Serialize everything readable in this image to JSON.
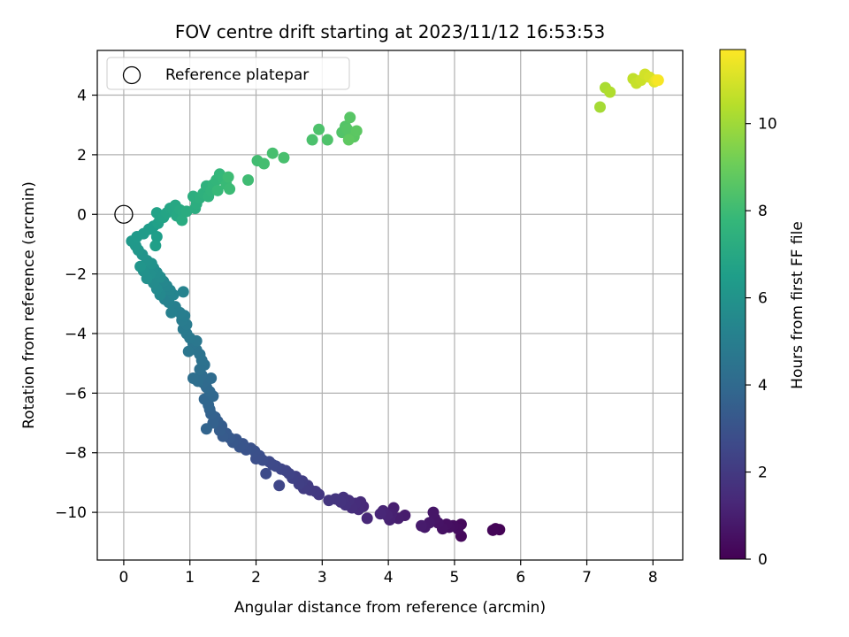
{
  "chart_data": {
    "type": "scatter",
    "title": "FOV centre drift starting at 2023/11/12 16:53:53",
    "xlabel": "Angular distance from reference (arcmin)",
    "ylabel": "Rotation from reference (arcmin)",
    "xlim": [
      -0.4,
      8.45
    ],
    "ylim": [
      -11.6,
      5.5
    ],
    "xticks": [
      0,
      1,
      2,
      3,
      4,
      5,
      6,
      7,
      8
    ],
    "yticks": [
      -10,
      -8,
      -6,
      -4,
      -2,
      0,
      2,
      4
    ],
    "xtick_labels": [
      "0",
      "1",
      "2",
      "3",
      "4",
      "5",
      "6",
      "7",
      "8"
    ],
    "ytick_labels": [
      "−10",
      "−8",
      "−6",
      "−4",
      "−2",
      "0",
      "2",
      "4"
    ],
    "grid": true,
    "legend": {
      "placement": "top-left",
      "entries": [
        {
          "label": "Reference platepar",
          "marker": "open-circle"
        }
      ]
    },
    "reference_point": {
      "x": 0,
      "y": 0
    },
    "colorbar": {
      "label": "Hours from first FF file",
      "range": [
        0,
        11.7
      ],
      "ticks": [
        0,
        2,
        4,
        6,
        8,
        10
      ],
      "tick_labels": [
        "0",
        "2",
        "4",
        "6",
        "8",
        "10"
      ],
      "colormap": "viridis",
      "stops": [
        "#440154",
        "#482878",
        "#3e4989",
        "#31688e",
        "#26828e",
        "#1f9e89",
        "#35b779",
        "#6ece58",
        "#b5de2b",
        "#fde725"
      ]
    },
    "points": [
      [
        5.68,
        -10.58,
        0.05
      ],
      [
        5.62,
        -10.55,
        0.1
      ],
      [
        5.58,
        -10.6,
        0.15
      ],
      [
        5.1,
        -10.8,
        0.25
      ],
      [
        5.1,
        -10.4,
        0.3
      ],
      [
        5.05,
        -10.55,
        0.35
      ],
      [
        4.98,
        -10.45,
        0.4
      ],
      [
        4.92,
        -10.5,
        0.45
      ],
      [
        4.88,
        -10.4,
        0.5
      ],
      [
        4.82,
        -10.55,
        0.55
      ],
      [
        4.75,
        -10.35,
        0.6
      ],
      [
        4.7,
        -10.2,
        0.65
      ],
      [
        4.68,
        -10.0,
        0.7
      ],
      [
        4.62,
        -10.35,
        0.75
      ],
      [
        4.55,
        -10.5,
        0.8
      ],
      [
        4.5,
        -10.45,
        0.85
      ],
      [
        4.25,
        -10.1,
        0.9
      ],
      [
        4.15,
        -10.2,
        0.95
      ],
      [
        4.08,
        -9.85,
        1.0
      ],
      [
        4.05,
        -10.05,
        1.05
      ],
      [
        4.02,
        -10.25,
        1.1
      ],
      [
        3.98,
        -10.1,
        1.15
      ],
      [
        3.92,
        -9.95,
        1.2
      ],
      [
        3.88,
        -10.05,
        1.25
      ],
      [
        3.68,
        -10.2,
        1.3
      ],
      [
        3.62,
        -9.8,
        1.35
      ],
      [
        3.58,
        -9.65,
        1.4
      ],
      [
        3.55,
        -9.9,
        1.45
      ],
      [
        3.5,
        -9.7,
        1.5
      ],
      [
        3.45,
        -9.85,
        1.55
      ],
      [
        3.4,
        -9.6,
        1.6
      ],
      [
        3.35,
        -9.75,
        1.65
      ],
      [
        3.32,
        -9.5,
        1.7
      ],
      [
        3.28,
        -9.65,
        1.75
      ],
      [
        3.2,
        -9.55,
        1.8
      ],
      [
        3.1,
        -9.6,
        1.85
      ],
      [
        2.95,
        -9.4,
        1.9
      ],
      [
        2.9,
        -9.3,
        1.95
      ],
      [
        2.82,
        -9.25,
        2.0
      ],
      [
        2.78,
        -9.1,
        2.05
      ],
      [
        2.72,
        -9.2,
        2.1
      ],
      [
        2.7,
        -8.95,
        2.15
      ],
      [
        2.65,
        -9.05,
        2.2
      ],
      [
        2.6,
        -8.8,
        2.25
      ],
      [
        2.55,
        -8.85,
        2.3
      ],
      [
        2.5,
        -8.7,
        2.35
      ],
      [
        2.45,
        -8.6,
        2.4
      ],
      [
        2.38,
        -8.55,
        2.45
      ],
      [
        2.35,
        -9.1,
        2.5
      ],
      [
        2.3,
        -8.45,
        2.55
      ],
      [
        2.25,
        -8.4,
        2.6
      ],
      [
        2.2,
        -8.3,
        2.65
      ],
      [
        2.15,
        -8.7,
        2.7
      ],
      [
        2.1,
        -8.25,
        2.75
      ],
      [
        2.05,
        -8.1,
        2.8
      ],
      [
        2.0,
        -8.2,
        2.85
      ],
      [
        1.98,
        -7.95,
        2.9
      ],
      [
        1.92,
        -7.85,
        2.95
      ],
      [
        1.85,
        -7.9,
        3.0
      ],
      [
        1.8,
        -7.7,
        3.05
      ],
      [
        1.75,
        -7.8,
        3.1
      ],
      [
        1.7,
        -7.55,
        3.15
      ],
      [
        1.65,
        -7.65,
        3.2
      ],
      [
        1.6,
        -7.5,
        3.25
      ],
      [
        1.55,
        -7.35,
        3.3
      ],
      [
        1.5,
        -7.45,
        3.35
      ],
      [
        1.48,
        -7.1,
        3.4
      ],
      [
        1.45,
        -7.25,
        3.45
      ],
      [
        1.42,
        -6.95,
        3.5
      ],
      [
        1.38,
        -6.8,
        3.55
      ],
      [
        1.35,
        -7.0,
        3.6
      ],
      [
        1.32,
        -6.7,
        3.65
      ],
      [
        1.3,
        -6.55,
        3.7
      ],
      [
        1.25,
        -7.2,
        3.75
      ],
      [
        1.28,
        -6.4,
        3.8
      ],
      [
        1.22,
        -6.2,
        3.85
      ],
      [
        1.35,
        -6.1,
        3.9
      ],
      [
        1.3,
        -5.95,
        3.95
      ],
      [
        1.25,
        -5.8,
        4.0
      ],
      [
        1.2,
        -5.65,
        4.05
      ],
      [
        1.32,
        -5.5,
        4.1
      ],
      [
        1.18,
        -5.4,
        4.15
      ],
      [
        1.12,
        -5.6,
        4.2
      ],
      [
        1.05,
        -5.5,
        4.25
      ],
      [
        1.15,
        -5.2,
        4.3
      ],
      [
        1.22,
        -5.05,
        4.35
      ],
      [
        1.18,
        -4.9,
        4.4
      ],
      [
        1.15,
        -4.7,
        4.45
      ],
      [
        1.1,
        -4.55,
        4.5
      ],
      [
        1.05,
        -4.35,
        4.55
      ],
      [
        0.98,
        -4.6,
        4.6
      ],
      [
        1.1,
        -4.25,
        4.65
      ],
      [
        1.0,
        -4.15,
        4.7
      ],
      [
        0.95,
        -4.0,
        4.75
      ],
      [
        0.9,
        -3.85,
        4.8
      ],
      [
        0.95,
        -3.7,
        4.85
      ],
      [
        0.88,
        -3.55,
        4.9
      ],
      [
        0.92,
        -3.4,
        4.95
      ],
      [
        0.85,
        -3.3,
        5.0
      ],
      [
        0.78,
        -3.1,
        5.05
      ],
      [
        0.72,
        -3.3,
        5.1
      ],
      [
        0.68,
        -2.95,
        5.15
      ],
      [
        0.62,
        -2.85,
        5.2
      ],
      [
        0.9,
        -2.6,
        5.25
      ],
      [
        0.75,
        -2.7,
        5.3
      ],
      [
        0.7,
        -2.55,
        5.35
      ],
      [
        0.65,
        -2.4,
        5.4
      ],
      [
        0.6,
        -2.25,
        5.45
      ],
      [
        0.55,
        -2.7,
        5.5
      ],
      [
        0.5,
        -2.5,
        5.55
      ],
      [
        0.45,
        -2.3,
        5.6
      ],
      [
        0.55,
        -2.1,
        5.65
      ],
      [
        0.5,
        -1.95,
        5.7
      ],
      [
        0.45,
        -1.8,
        5.75
      ],
      [
        0.4,
        -2.0,
        5.8
      ],
      [
        0.35,
        -2.15,
        5.85
      ],
      [
        0.3,
        -1.9,
        5.9
      ],
      [
        0.42,
        -1.65,
        5.95
      ],
      [
        0.35,
        -1.55,
        6.0
      ],
      [
        0.28,
        -1.35,
        6.05
      ],
      [
        0.25,
        -1.75,
        6.1
      ],
      [
        0.22,
        -1.2,
        6.15
      ],
      [
        0.18,
        -1.05,
        6.2
      ],
      [
        0.12,
        -0.9,
        6.25
      ],
      [
        0.2,
        -0.75,
        6.3
      ],
      [
        0.3,
        -0.65,
        6.35
      ],
      [
        0.38,
        -0.5,
        6.4
      ],
      [
        0.45,
        -0.4,
        6.45
      ],
      [
        0.5,
        -0.75,
        6.5
      ],
      [
        0.48,
        -1.05,
        6.55
      ],
      [
        0.52,
        -0.3,
        6.6
      ],
      [
        0.55,
        -0.15,
        6.65
      ],
      [
        0.5,
        0.05,
        6.7
      ],
      [
        0.6,
        -0.1,
        6.75
      ],
      [
        0.65,
        0.05,
        6.8
      ],
      [
        0.7,
        0.2,
        6.85
      ],
      [
        0.75,
        0.15,
        6.9
      ],
      [
        0.78,
        0.3,
        6.95
      ],
      [
        0.8,
        -0.05,
        7.0
      ],
      [
        0.85,
        0.15,
        7.05
      ],
      [
        0.9,
        0.05,
        7.1
      ],
      [
        0.88,
        -0.2,
        7.15
      ],
      [
        0.95,
        0.1,
        7.2
      ],
      [
        1.08,
        0.2,
        7.25
      ],
      [
        1.1,
        0.35,
        7.3
      ],
      [
        1.05,
        0.6,
        7.35
      ],
      [
        1.15,
        0.55,
        7.4
      ],
      [
        1.2,
        0.7,
        7.45
      ],
      [
        1.25,
        0.95,
        7.5
      ],
      [
        1.28,
        0.6,
        7.55
      ],
      [
        1.32,
        0.8,
        7.6
      ],
      [
        1.35,
        1.0,
        7.65
      ],
      [
        1.4,
        1.15,
        7.7
      ],
      [
        1.45,
        1.35,
        7.75
      ],
      [
        1.5,
        1.2,
        7.8
      ],
      [
        1.42,
        0.8,
        7.85
      ],
      [
        1.55,
        1.0,
        7.9
      ],
      [
        1.6,
        0.85,
        7.95
      ],
      [
        1.58,
        1.25,
        8.0
      ],
      [
        1.88,
        1.15,
        8.05
      ],
      [
        2.02,
        1.8,
        8.1
      ],
      [
        2.12,
        1.7,
        8.15
      ],
      [
        2.25,
        2.05,
        8.2
      ],
      [
        2.42,
        1.9,
        8.25
      ],
      [
        2.85,
        2.5,
        8.3
      ],
      [
        2.95,
        2.85,
        8.35
      ],
      [
        3.08,
        2.5,
        8.4
      ],
      [
        3.3,
        2.75,
        8.45
      ],
      [
        3.35,
        2.95,
        8.5
      ],
      [
        3.38,
        2.85,
        8.55
      ],
      [
        3.42,
        3.25,
        8.6
      ],
      [
        3.48,
        2.6,
        8.65
      ],
      [
        3.52,
        2.8,
        8.7
      ],
      [
        3.4,
        2.5,
        8.75
      ],
      [
        7.2,
        3.6,
        10.1
      ],
      [
        7.28,
        4.25,
        10.2
      ],
      [
        7.35,
        4.1,
        10.3
      ],
      [
        7.7,
        4.55,
        10.6
      ],
      [
        7.75,
        4.4,
        10.7
      ],
      [
        7.82,
        4.5,
        10.8
      ],
      [
        7.88,
        4.7,
        10.9
      ],
      [
        7.95,
        4.6,
        11.0
      ],
      [
        8.02,
        4.45,
        11.2
      ],
      [
        8.05,
        4.5,
        11.4
      ],
      [
        8.08,
        4.5,
        11.6
      ]
    ]
  }
}
